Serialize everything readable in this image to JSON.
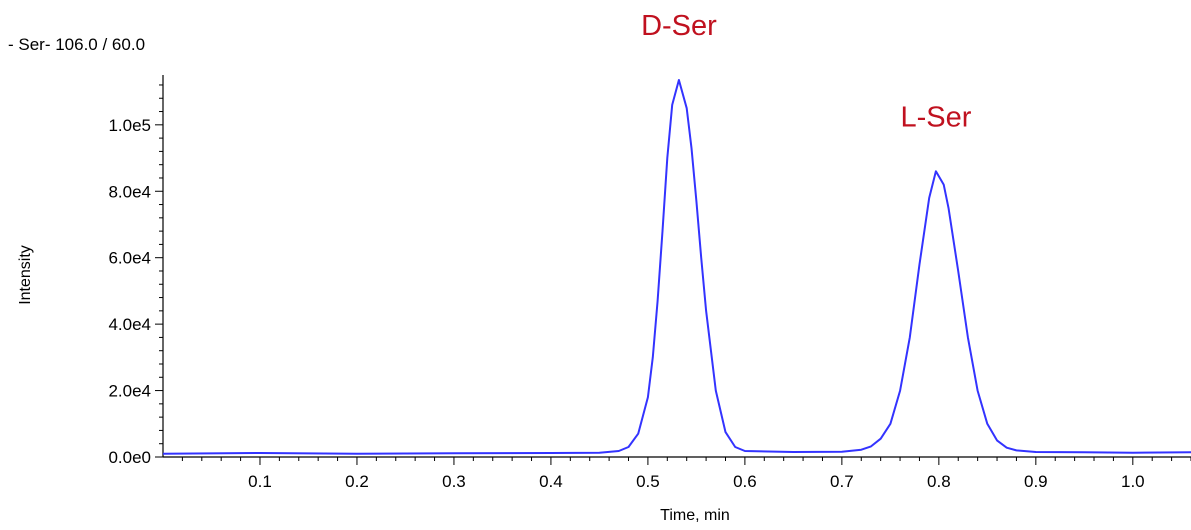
{
  "chart_data": {
    "type": "line",
    "title": "- Ser- 106.0 / 60.0",
    "xlabel": "Time, min",
    "ylabel": "Intensity",
    "xlim": [
      0,
      1.06
    ],
    "ylim": [
      0,
      115000
    ],
    "x_ticks": [
      0.1,
      0.2,
      0.3,
      0.4,
      0.5,
      0.6,
      0.7,
      0.8,
      0.9,
      1.0
    ],
    "x_tick_labels": [
      "0.1",
      "0.2",
      "0.3",
      "0.4",
      "0.5",
      "0.6",
      "0.7",
      "0.8",
      "0.9",
      "1.0"
    ],
    "y_ticks": [
      0,
      20000,
      40000,
      60000,
      80000,
      100000
    ],
    "y_tick_labels": [
      "0.0e0",
      "2.0e4",
      "4.0e4",
      "6.0e4",
      "8.0e4",
      "1.0e5"
    ],
    "line_color": "#3333ff",
    "annotation_color": "#c0111f",
    "series": [
      {
        "x": [
          0.0,
          0.1,
          0.2,
          0.3,
          0.4,
          0.45,
          0.47,
          0.48,
          0.49,
          0.5,
          0.505,
          0.51,
          0.515,
          0.52,
          0.525,
          0.532,
          0.54,
          0.545,
          0.55,
          0.555,
          0.56,
          0.57,
          0.58,
          0.59,
          0.6,
          0.65,
          0.7,
          0.72,
          0.73,
          0.74,
          0.75,
          0.76,
          0.77,
          0.78,
          0.79,
          0.797,
          0.805,
          0.81,
          0.82,
          0.83,
          0.84,
          0.85,
          0.86,
          0.87,
          0.88,
          0.9,
          0.95,
          1.0,
          1.06
        ],
        "y": [
          1000,
          1200,
          1000,
          1100,
          1200,
          1300,
          1800,
          3000,
          7000,
          18000,
          30000,
          47000,
          68000,
          90000,
          106000,
          113500,
          105000,
          93000,
          77000,
          60000,
          44000,
          20000,
          7500,
          3000,
          1800,
          1500,
          1600,
          2200,
          3200,
          5500,
          10000,
          20000,
          36000,
          58000,
          78000,
          86000,
          82000,
          75000,
          56000,
          36000,
          20000,
          10000,
          5000,
          2800,
          2000,
          1500,
          1400,
          1300,
          1400
        ]
      }
    ],
    "annotations": [
      {
        "text": "D-Ser",
        "x": 0.532,
        "y": 113500
      },
      {
        "text": "L-Ser",
        "x": 0.797,
        "y": 86000
      }
    ]
  }
}
